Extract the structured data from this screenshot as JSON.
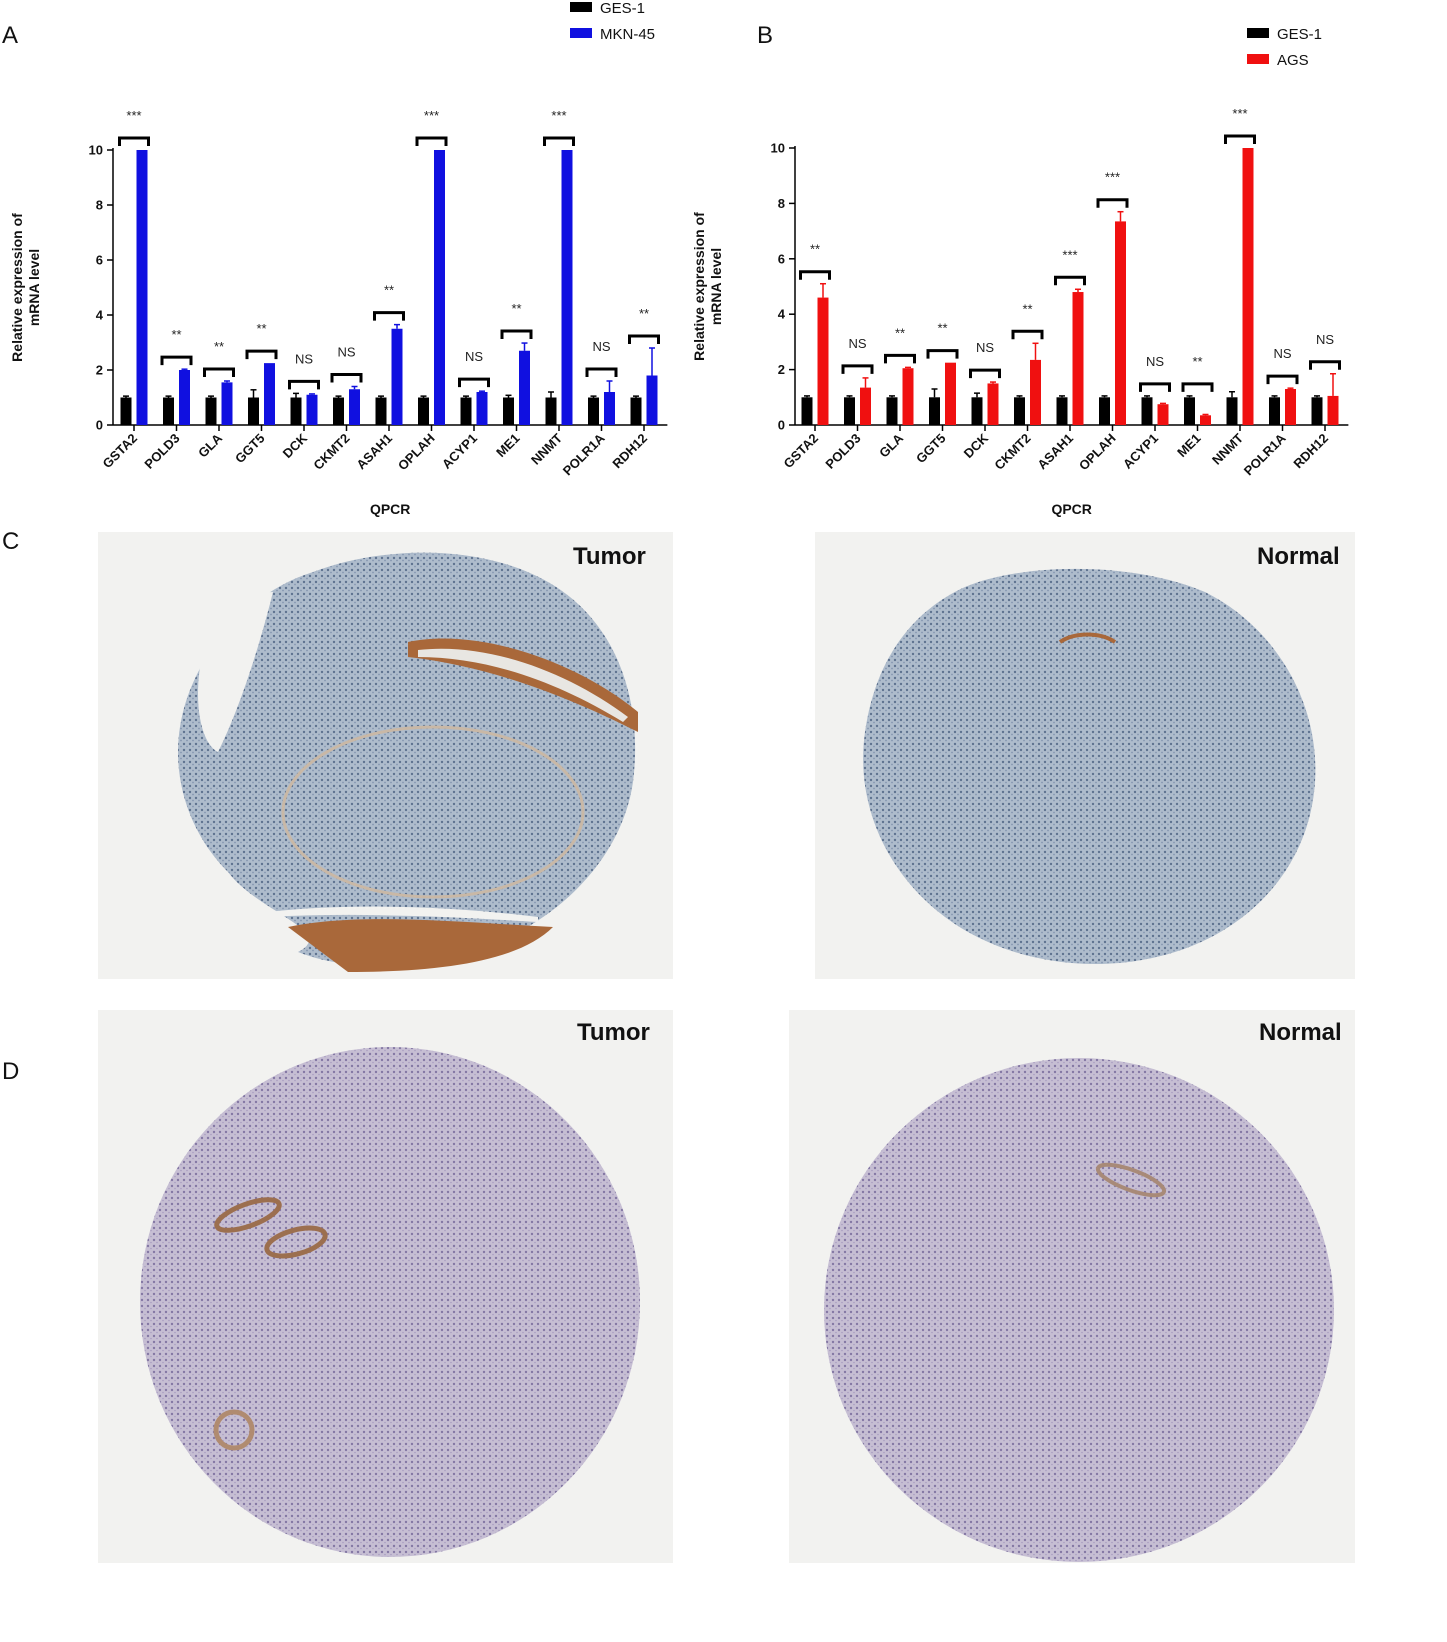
{
  "panels": {
    "A": "A",
    "B": "B",
    "C": "C",
    "D": "D"
  },
  "chart_data": [
    {
      "type": "bar",
      "categories": [
        "GSTA2",
        "POLD3",
        "GLA",
        "GGT5",
        "DCK",
        "CKMT2",
        "ASAH1",
        "OPLAH",
        "ACYP1",
        "ME1",
        "NNMT",
        "POLR1A",
        "RDH12"
      ],
      "series": [
        {
          "name": "GES-1",
          "color": "#000000",
          "values": [
            1,
            1,
            1,
            1,
            1,
            1,
            1,
            1,
            1,
            1,
            1,
            1,
            1
          ],
          "errors": [
            0.05,
            0.05,
            0.05,
            0.28,
            0.15,
            0.05,
            0.05,
            0.05,
            0.05,
            0.08,
            0.2,
            0.05,
            0.05
          ]
        },
        {
          "name": "MKN-45",
          "color": "#1010e0",
          "values": [
            10,
            2.0,
            1.55,
            2.25,
            1.1,
            1.3,
            3.5,
            10,
            1.2,
            2.7,
            10,
            1.2,
            1.8
          ],
          "errors": [
            0,
            0.03,
            0.05,
            0,
            0.03,
            0.1,
            0.15,
            0,
            0.03,
            0.28,
            0,
            0.4,
            1.0
          ]
        }
      ],
      "significance": [
        "***",
        "**",
        "**",
        "**",
        "NS",
        "NS",
        "**",
        "***",
        "NS",
        "**",
        "***",
        "NS",
        "**"
      ],
      "xlabel": "QPCR",
      "ylabel": [
        "Relative expression of",
        "mRNA level"
      ],
      "ylim": [
        0,
        10
      ],
      "yticks": [
        0,
        2,
        4,
        6,
        8,
        10
      ],
      "legend": "top-right"
    },
    {
      "type": "bar",
      "categories": [
        "GSTA2",
        "POLD3",
        "GLA",
        "GGT5",
        "DCK",
        "CKMT2",
        "ASAH1",
        "OPLAH",
        "ACYP1",
        "ME1",
        "NNMT",
        "POLR1A",
        "RDH12"
      ],
      "series": [
        {
          "name": "GES-1",
          "color": "#000000",
          "values": [
            1,
            1,
            1,
            1,
            1,
            1,
            1,
            1,
            1,
            1,
            1,
            1,
            1
          ],
          "errors": [
            0.05,
            0.05,
            0.05,
            0.3,
            0.15,
            0.05,
            0.05,
            0.05,
            0.05,
            0.05,
            0.2,
            0.05,
            0.05
          ]
        },
        {
          "name": "AGS",
          "color": "#f01010",
          "values": [
            4.6,
            1.35,
            2.05,
            2.25,
            1.5,
            2.35,
            4.8,
            7.35,
            0.75,
            0.35,
            10,
            1.3,
            1.05
          ],
          "errors": [
            0.5,
            0.35,
            0.03,
            0,
            0.05,
            0.6,
            0.1,
            0.35,
            0.03,
            0.03,
            0,
            0.03,
            0.8
          ]
        }
      ],
      "significance": [
        "**",
        "NS",
        "**",
        "**",
        "NS",
        "**",
        "***",
        "***",
        "NS",
        "**",
        "***",
        "NS",
        "NS"
      ],
      "xlabel": "QPCR",
      "ylabel": [
        "Relative expression of",
        "mRNA level"
      ],
      "ylim": [
        0,
        10
      ],
      "yticks": [
        0,
        2,
        4,
        6,
        8,
        10
      ],
      "legend": "top-right"
    }
  ],
  "tissue_images": {
    "C": {
      "left_label": "Tumor",
      "right_label": "Normal"
    },
    "D": {
      "left_label": "Tumor",
      "right_label": "Normal"
    }
  }
}
